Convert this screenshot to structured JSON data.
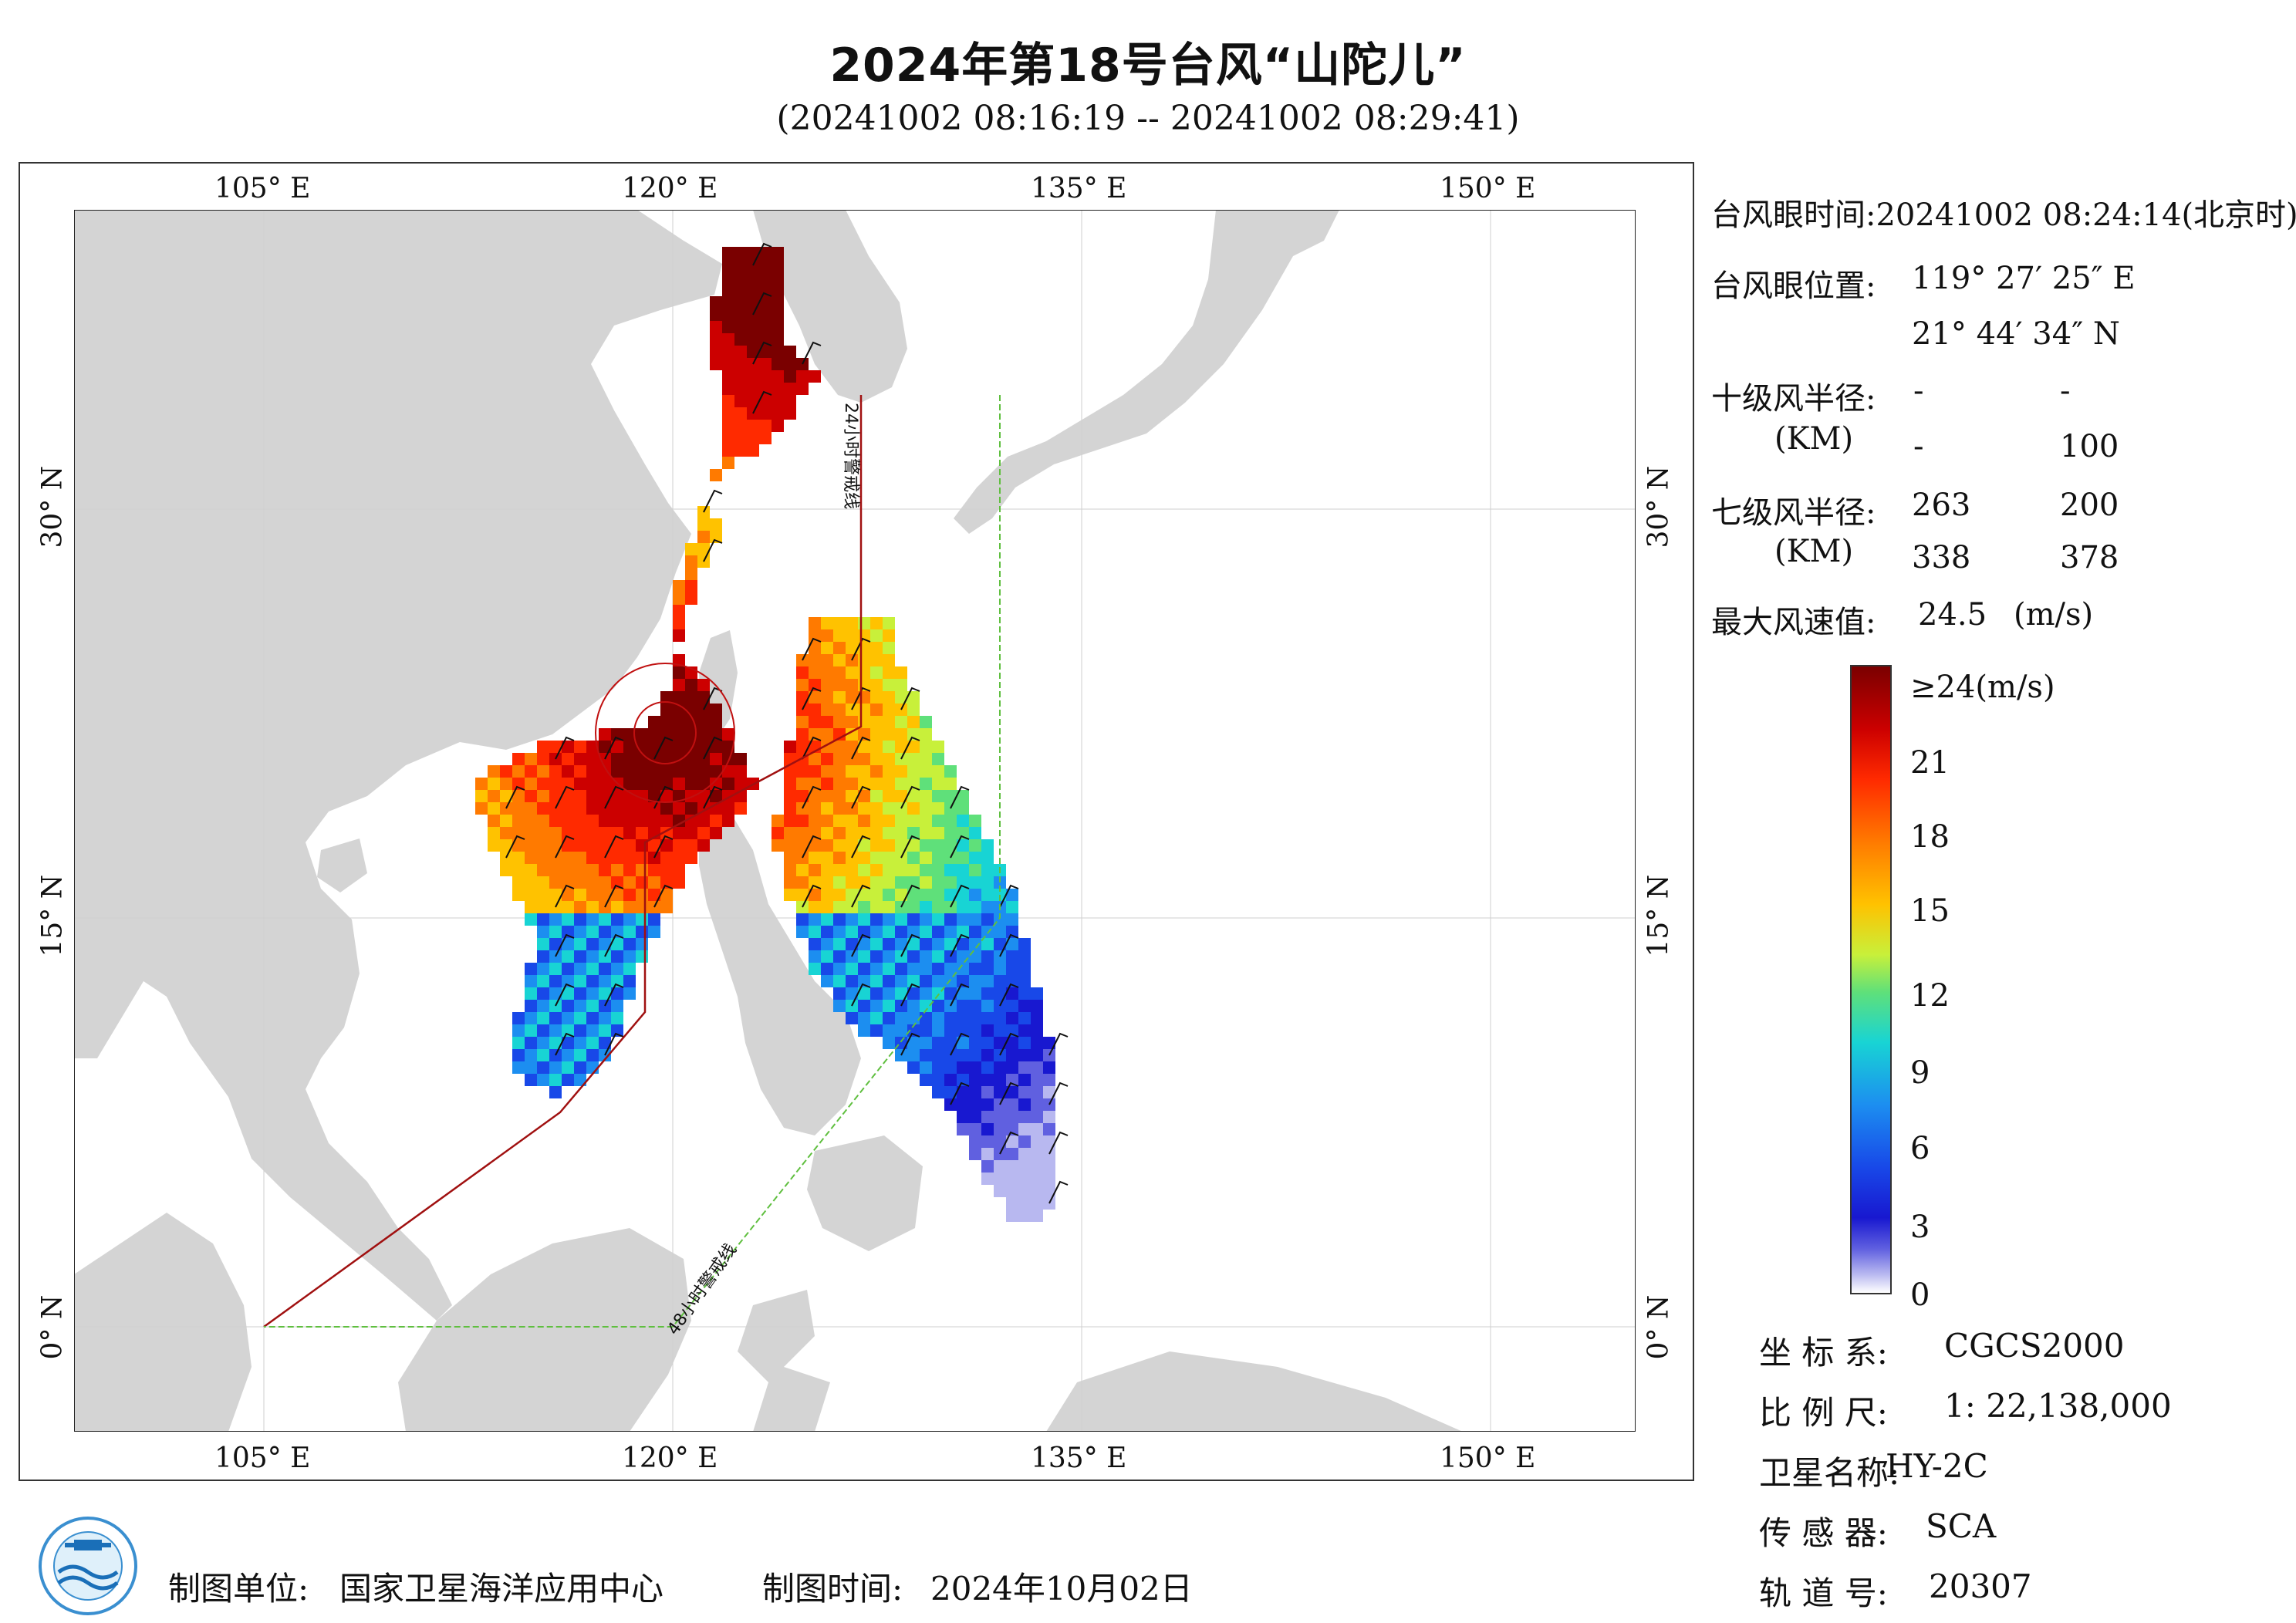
{
  "title": "2024年第18号台风“山陀儿”",
  "subtitle": "(20241002 08:16:19 -- 20241002 08:29:41)",
  "map": {
    "lon_ticks": [
      "105° E",
      "120° E",
      "135° E",
      "150° E"
    ],
    "lat_ticks": [
      "30° N",
      "15° N",
      "0° N"
    ],
    "warning_24h": "24小时警戒线",
    "warning_48h": "48小时警戒线",
    "colors": {
      "land": "#d4d4d4",
      "sea": "#ffffff",
      "line_24h": "#a01010",
      "line_48h": "#5fbf3f"
    }
  },
  "info": {
    "eye_time_label": "台风眼时间:",
    "eye_time_value": "20241002 08:24:14(北京时)",
    "eye_pos_label": "台风眼位置:",
    "eye_lon": "119° 27′ 25″ E",
    "eye_lat": "21° 44′ 34″ N",
    "r10_label": "十级风半径:",
    "r10_unit": "(KM)",
    "r10_values": [
      "-",
      "-",
      "-",
      "100"
    ],
    "r7_label": "七级风半径:",
    "r7_unit": "(KM)",
    "r7_values": [
      "263",
      "200",
      "338",
      "378"
    ],
    "max_wind_label": "最大风速值:",
    "max_wind_value": "24.5",
    "max_wind_unit": "(m/s)"
  },
  "colorbar": {
    "labels": [
      "≥24(m/s)",
      "21",
      "18",
      "15",
      "12",
      "9",
      "6",
      "3",
      "0"
    ]
  },
  "meta": {
    "crs_label": "坐 标 系:",
    "crs_value": "CGCS2000",
    "scale_label": "比 例 尺:",
    "scale_value": "1: 22,138,000",
    "sat_label": "卫星名称:",
    "sat_value": "HY-2C",
    "sensor_label": "传 感 器:",
    "sensor_value": "SCA",
    "orbit_label": "轨 道 号:",
    "orbit_value": "20307"
  },
  "footer": {
    "org_label": "制图单位:",
    "org_value": "国家卫星海洋应用中心",
    "time_label": "制图时间:",
    "time_value": "2024年10月02日"
  }
}
